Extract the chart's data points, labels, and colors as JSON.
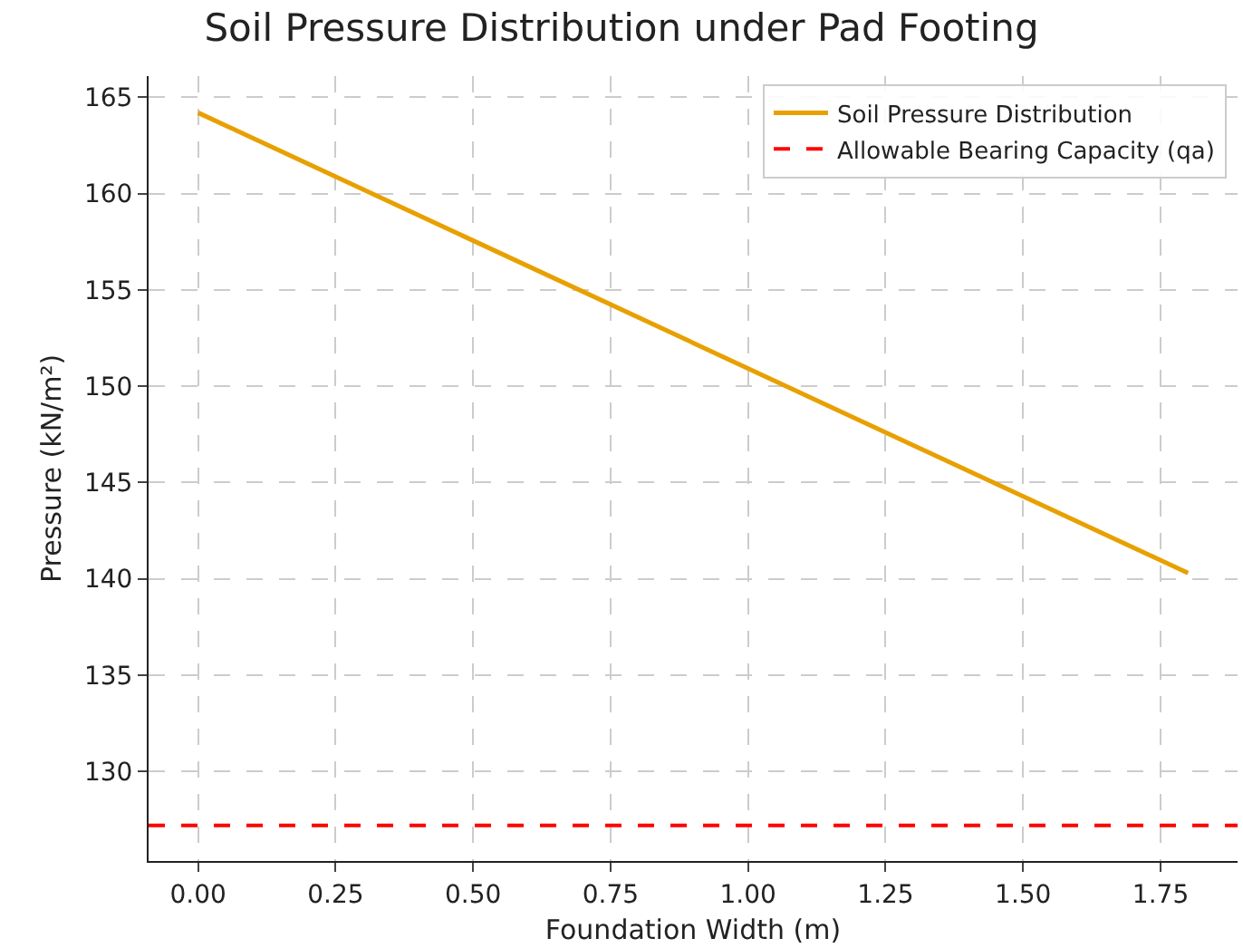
{
  "chart_data": {
    "type": "line",
    "title": "Soil Pressure Distribution under Pad Footing",
    "xlabel": "Foundation Width (m)",
    "ylabel": "Pressure (kN/m²)",
    "x": [
      0,
      1.8
    ],
    "series": [
      {
        "name": "Soil Pressure Distribution",
        "color": "#e8a000",
        "values": [
          164.2,
          140.3
        ]
      }
    ],
    "ref_lines": [
      {
        "axis": "y",
        "value": 127.2,
        "label": "Allowable Bearing Capacity (qa)",
        "color": "#ff0000",
        "line_style": "dashed"
      }
    ],
    "xlim": [
      -0.09,
      1.89
    ],
    "xticks": [
      {
        "value": 0,
        "label": "0.00"
      },
      {
        "value": 0.25,
        "label": "0.25"
      },
      {
        "value": 0.5,
        "label": "0.50"
      },
      {
        "value": 0.75,
        "label": "0.75"
      },
      {
        "value": 1,
        "label": "1.00"
      },
      {
        "value": 1.25,
        "label": "1.25"
      },
      {
        "value": 1.5,
        "label": "1.50"
      },
      {
        "value": 1.75,
        "label": "1.75"
      }
    ],
    "ylim": [
      125.35,
      166.1
    ],
    "yticks": [
      130,
      135,
      140,
      145,
      150,
      155,
      160,
      165
    ],
    "grid": true,
    "legend": "top right",
    "line_style": "solid"
  }
}
